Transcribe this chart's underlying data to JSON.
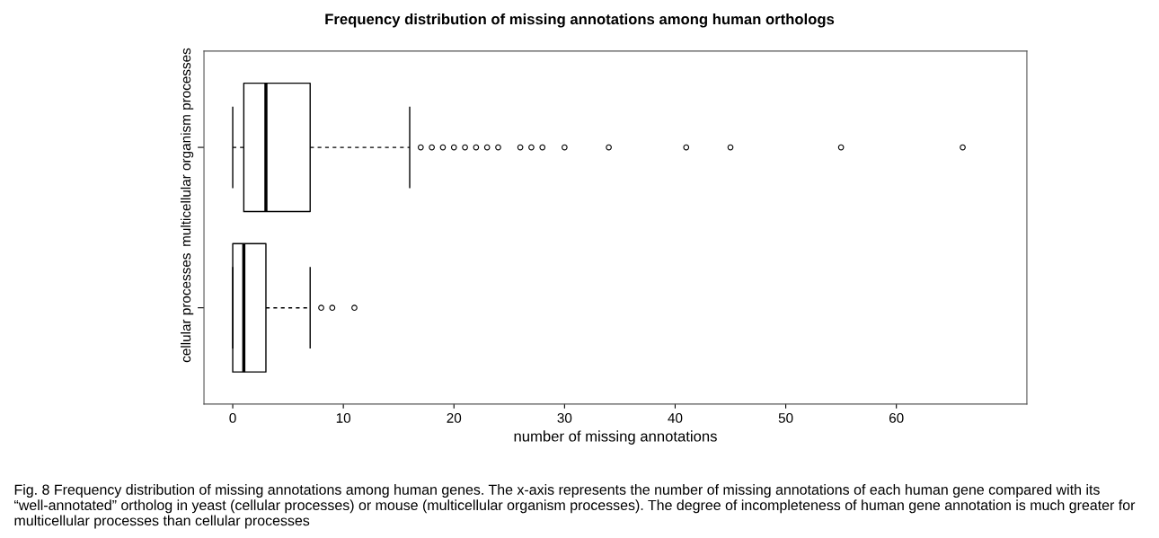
{
  "chart_data": {
    "type": "box",
    "title": "Frequency distribution of missing annotations among human orthologs",
    "xlabel": "number of missing annotations",
    "orientation": "horizontal",
    "categories": [
      "multicellular organism processes",
      "cellular processes"
    ],
    "boxes": [
      {
        "low": 0,
        "q1": 1,
        "median": 3,
        "q3": 7,
        "high": 16,
        "outliers": [
          17,
          18,
          19,
          20,
          21,
          22,
          23,
          24,
          26,
          27,
          28,
          30,
          34,
          41,
          45,
          55,
          66
        ]
      },
      {
        "low": 0,
        "q1": 0,
        "median": 1,
        "q3": 3,
        "high": 7,
        "outliers": [
          8,
          9,
          11
        ]
      }
    ],
    "xlim": [
      -2.6,
      71.8
    ],
    "xticks": [
      0,
      10,
      20,
      30,
      40,
      50,
      60
    ],
    "grid": false,
    "color": "#000000",
    "annotations": [
      "Fig. 8 Frequency distribution of missing annotations among human genes. The x-axis represents the number of missing annotations of each human gene compared with its “well-annotated” ortholog in yeast (cellular processes) or mouse (multicellular organism processes). The degree of incompleteness of human gene annotation is much greater for multicellular processes than cellular processes"
    ]
  }
}
